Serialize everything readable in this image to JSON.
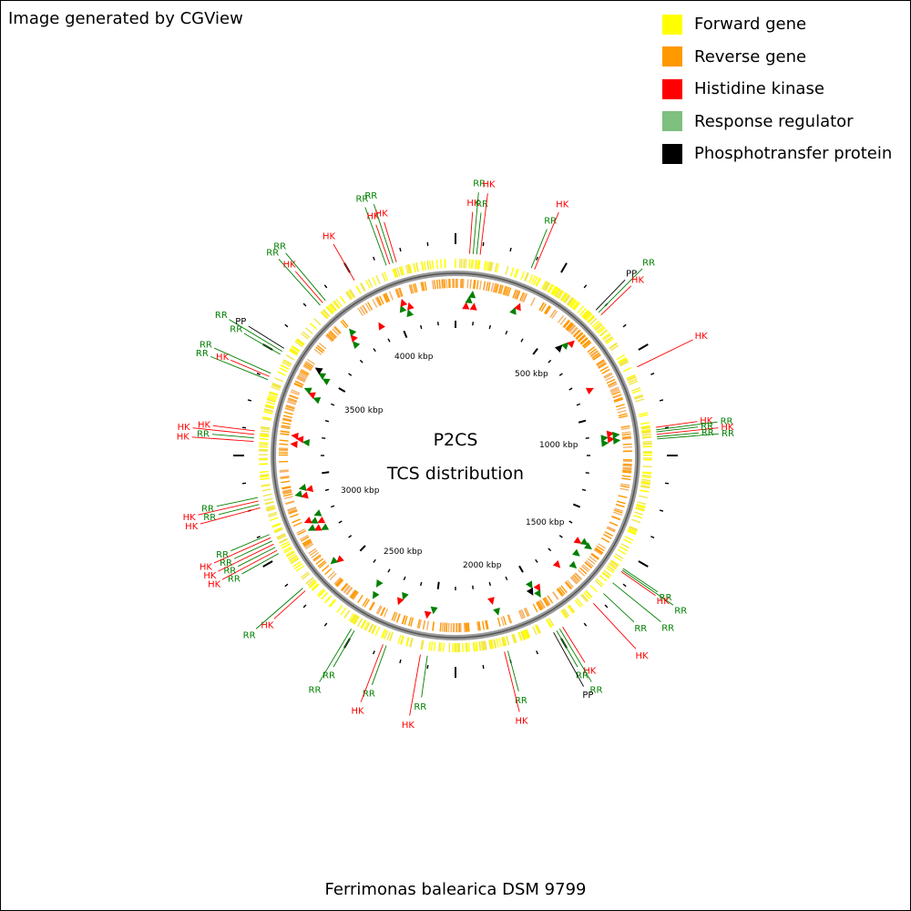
{
  "caption": "Image generated by CGView",
  "legend": [
    {
      "label": "Forward gene",
      "color": "#ffff00",
      "icon": "forward-gene-swatch"
    },
    {
      "label": "Reverse gene",
      "color": "#ff9900",
      "icon": "reverse-gene-swatch"
    },
    {
      "label": "Histidine kinase",
      "color": "#ff0000",
      "icon": "histidine-kinase-swatch"
    },
    {
      "label": "Response regulator",
      "color": "#7fbf7f",
      "icon": "response-regulator-swatch"
    },
    {
      "label": "Phosphotransfer protein",
      "color": "#000000",
      "icon": "phosphotransfer-protein-swatch"
    }
  ],
  "center": {
    "line1": "P2CS",
    "line2": "TCS distribution"
  },
  "scale": [
    "500 kbp",
    "1000 kbp",
    "1500 kbp",
    "2000 kbp",
    "2500 kbp",
    "3000 kbp",
    "3500 kbp",
    "4000 kbp"
  ],
  "organism": "Ferrimonas balearica DSM 9799",
  "features": [
    {
      "label": "HK",
      "type": "HK",
      "deg": 4
    },
    {
      "label": "RR",
      "type": "RR",
      "deg": 5
    },
    {
      "label": "RR",
      "type": "RR",
      "deg": 6
    },
    {
      "label": "HK",
      "type": "HK",
      "deg": 7
    },
    {
      "label": "RR",
      "type": "RR",
      "deg": 22
    },
    {
      "label": "HK",
      "type": "HK",
      "deg": 23
    },
    {
      "label": "PP",
      "type": "PP",
      "deg": 44
    },
    {
      "label": "RR",
      "type": "RR",
      "deg": 45
    },
    {
      "label": "HK",
      "type": "HK",
      "deg": 46
    },
    {
      "label": "HK",
      "type": "HK",
      "deg": 64
    },
    {
      "label": "HK",
      "type": "HK",
      "deg": 82
    },
    {
      "label": "RR",
      "type": "RR",
      "deg": 82.7
    },
    {
      "label": "RR",
      "type": "RR",
      "deg": 83.3
    },
    {
      "label": "HK",
      "type": "HK",
      "deg": 84
    },
    {
      "label": "RR",
      "type": "RR",
      "deg": 84.7
    },
    {
      "label": "RR",
      "type": "RR",
      "deg": 85.3
    },
    {
      "label": "RR",
      "type": "RR",
      "deg": 124
    },
    {
      "label": "RR",
      "type": "RR",
      "deg": 124.5
    },
    {
      "label": "HK",
      "type": "HK",
      "deg": 125
    },
    {
      "label": "RR",
      "type": "RR",
      "deg": 129
    },
    {
      "label": "RR",
      "type": "RR",
      "deg": 133
    },
    {
      "label": "HK",
      "type": "HK",
      "deg": 137
    },
    {
      "label": "HK",
      "type": "HK",
      "deg": 148
    },
    {
      "label": "RR",
      "type": "RR",
      "deg": 149
    },
    {
      "label": "RR",
      "type": "RR",
      "deg": 150
    },
    {
      "label": "PP",
      "type": "PP",
      "deg": 151
    },
    {
      "label": "RR",
      "type": "RR",
      "deg": 165
    },
    {
      "label": "HK",
      "type": "HK",
      "deg": 166
    },
    {
      "label": "RR",
      "type": "RR",
      "deg": 188
    },
    {
      "label": "HK",
      "type": "HK",
      "deg": 190
    },
    {
      "label": "RR",
      "type": "RR",
      "deg": 200
    },
    {
      "label": "HK",
      "type": "HK",
      "deg": 201
    },
    {
      "label": "RR",
      "type": "RR",
      "deg": 210
    },
    {
      "label": "RR",
      "type": "RR",
      "deg": 211
    },
    {
      "label": "HK",
      "type": "HK",
      "deg": 228
    },
    {
      "label": "RR",
      "type": "RR",
      "deg": 229
    },
    {
      "label": "RR",
      "type": "RR",
      "deg": 241
    },
    {
      "label": "HK",
      "type": "HK",
      "deg": 242
    },
    {
      "label": "RR",
      "type": "RR",
      "deg": 243
    },
    {
      "label": "HK",
      "type": "HK",
      "deg": 244
    },
    {
      "label": "RR",
      "type": "RR",
      "deg": 245
    },
    {
      "label": "HK",
      "type": "HK",
      "deg": 246
    },
    {
      "label": "RR",
      "type": "RR",
      "deg": 247
    },
    {
      "label": "HK",
      "type": "HK",
      "deg": 255
    },
    {
      "label": "RR",
      "type": "RR",
      "deg": 256
    },
    {
      "label": "HK",
      "type": "HK",
      "deg": 257
    },
    {
      "label": "RR",
      "type": "RR",
      "deg": 258
    },
    {
      "label": "HK",
      "type": "HK",
      "deg": 274
    },
    {
      "label": "RR",
      "type": "RR",
      "deg": 275
    },
    {
      "label": "HK",
      "type": "HK",
      "deg": 276
    },
    {
      "label": "HK",
      "type": "HK",
      "deg": 277
    },
    {
      "label": "RR",
      "type": "RR",
      "deg": 292
    },
    {
      "label": "HK",
      "type": "HK",
      "deg": 293
    },
    {
      "label": "RR",
      "type": "RR",
      "deg": 294
    },
    {
      "label": "RR",
      "type": "RR",
      "deg": 300
    },
    {
      "label": "RR",
      "type": "RR",
      "deg": 301
    },
    {
      "label": "PP",
      "type": "PP",
      "deg": 302
    },
    {
      "label": "RR",
      "type": "RR",
      "deg": 318
    },
    {
      "label": "HK",
      "type": "HK",
      "deg": 319
    },
    {
      "label": "RR",
      "type": "RR",
      "deg": 320
    },
    {
      "label": "HK",
      "type": "HK",
      "deg": 330
    },
    {
      "label": "RR",
      "type": "RR",
      "deg": 340
    },
    {
      "label": "HK",
      "type": "HK",
      "deg": 341
    },
    {
      "label": "RR",
      "type": "RR",
      "deg": 342
    },
    {
      "label": "HK",
      "type": "HK",
      "deg": 343
    }
  ]
}
